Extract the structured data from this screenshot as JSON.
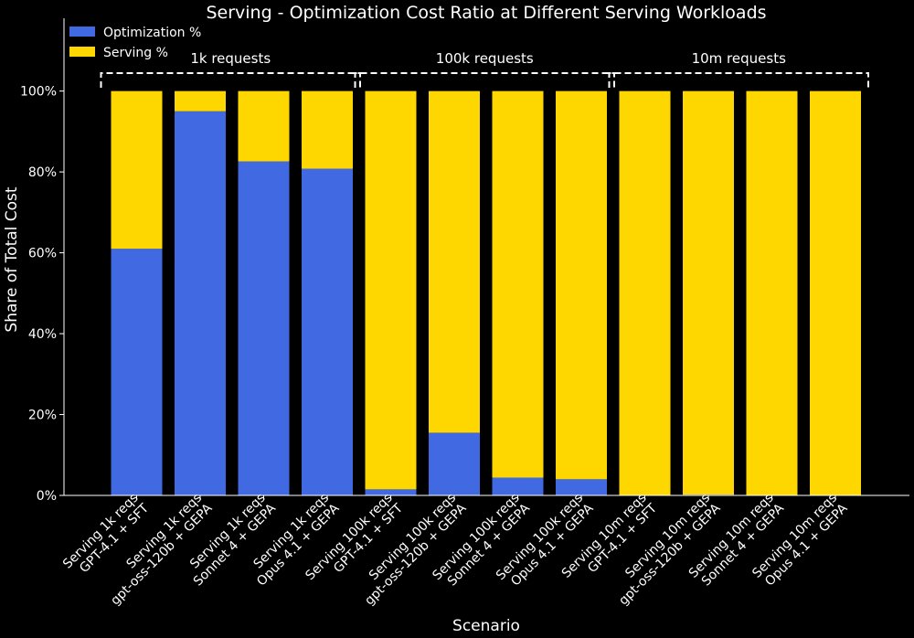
{
  "chart_data": {
    "type": "bar",
    "stacked": true,
    "title": "Serving - Optimization Cost Ratio at Different Serving Workloads",
    "xlabel": "Scenario",
    "ylabel": "Share of Total Cost",
    "ylim": [
      0,
      118
    ],
    "yticks": [
      "0%",
      "20%",
      "40%",
      "60%",
      "80%",
      "100%"
    ],
    "grid": false,
    "legend_position": "top-left",
    "categories": [
      [
        "Serving 1k reqs",
        "GPT-4.1 + SFT"
      ],
      [
        "Serving 1k reqs",
        "gpt-oss-120b + GEPA"
      ],
      [
        "Serving 1k reqs",
        "Sonnet 4 + GEPA"
      ],
      [
        "Serving 1k reqs",
        "Opus 4.1 + GEPA"
      ],
      [
        "Serving 100k reqs",
        "GPT-4.1 + SFT"
      ],
      [
        "Serving 100k reqs",
        "gpt-oss-120b + GEPA"
      ],
      [
        "Serving 100k reqs",
        "Sonnet 4 + GEPA"
      ],
      [
        "Serving 100k reqs",
        "Opus 4.1 + GEPA"
      ],
      [
        "Serving 10m reqs",
        "GPT-4.1 + SFT"
      ],
      [
        "Serving 10m reqs",
        "gpt-oss-120b + GEPA"
      ],
      [
        "Serving 10m reqs",
        "Sonnet 4 + GEPA"
      ],
      [
        "Serving 10m reqs",
        "Opus 4.1 + GEPA"
      ]
    ],
    "series": [
      {
        "name": "Optimization %",
        "color": "#4169E1",
        "values": [
          61.0,
          95.0,
          82.6,
          80.8,
          1.5,
          15.5,
          4.4,
          4.0,
          0.0,
          0.2,
          0.0,
          0.0
        ]
      },
      {
        "name": "Serving %",
        "color": "#FFD700",
        "values": [
          39.0,
          5.0,
          17.4,
          19.2,
          98.5,
          84.5,
          95.6,
          96.0,
          100.0,
          99.8,
          100.0,
          100.0
        ]
      }
    ],
    "groups": [
      {
        "label": "1k requests",
        "start": 0,
        "end": 3
      },
      {
        "label": "100k requests",
        "start": 4,
        "end": 7
      },
      {
        "label": "10m requests",
        "start": 8,
        "end": 11
      }
    ]
  }
}
